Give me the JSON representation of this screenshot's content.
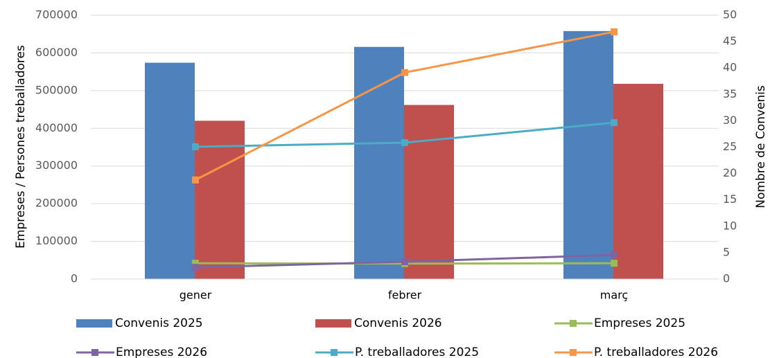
{
  "chart_data": {
    "type": "bar",
    "categories": [
      "gener",
      "febrer",
      "març"
    ],
    "y_label": "Empreses / Persones treballadores",
    "y2_label": "Nombre de Convenis",
    "ylim": [
      0,
      700000
    ],
    "yticks": [
      0,
      100000,
      200000,
      300000,
      400000,
      500000,
      600000,
      700000
    ],
    "y2lim": [
      0,
      50
    ],
    "y2ticks": [
      0,
      5,
      10,
      15,
      20,
      25,
      30,
      35,
      40,
      45,
      50
    ],
    "grid": true,
    "series": [
      {
        "name": "Convenis 2025",
        "type": "bar",
        "axis": "y2",
        "color": "#4f81bd",
        "values": [
          41,
          44,
          47
        ]
      },
      {
        "name": "Convenis 2026",
        "type": "bar",
        "axis": "y2",
        "color": "#c0504d",
        "values": [
          30,
          33,
          37
        ]
      },
      {
        "name": "Empreses 2025",
        "type": "line",
        "color": "#9bbb59",
        "values": [
          42000,
          41000,
          42000
        ]
      },
      {
        "name": "Empreses 2026",
        "type": "line",
        "color": "#8064a2",
        "values": [
          31000,
          46000,
          64000
        ]
      },
      {
        "name": "P. treballadores 2025",
        "type": "line",
        "color": "#4bacc6",
        "values": [
          351000,
          362000,
          415000
        ]
      },
      {
        "name": "P. treballadores 2026",
        "type": "line",
        "color": "#f79646",
        "values": [
          263000,
          548000,
          656000
        ]
      }
    ]
  }
}
